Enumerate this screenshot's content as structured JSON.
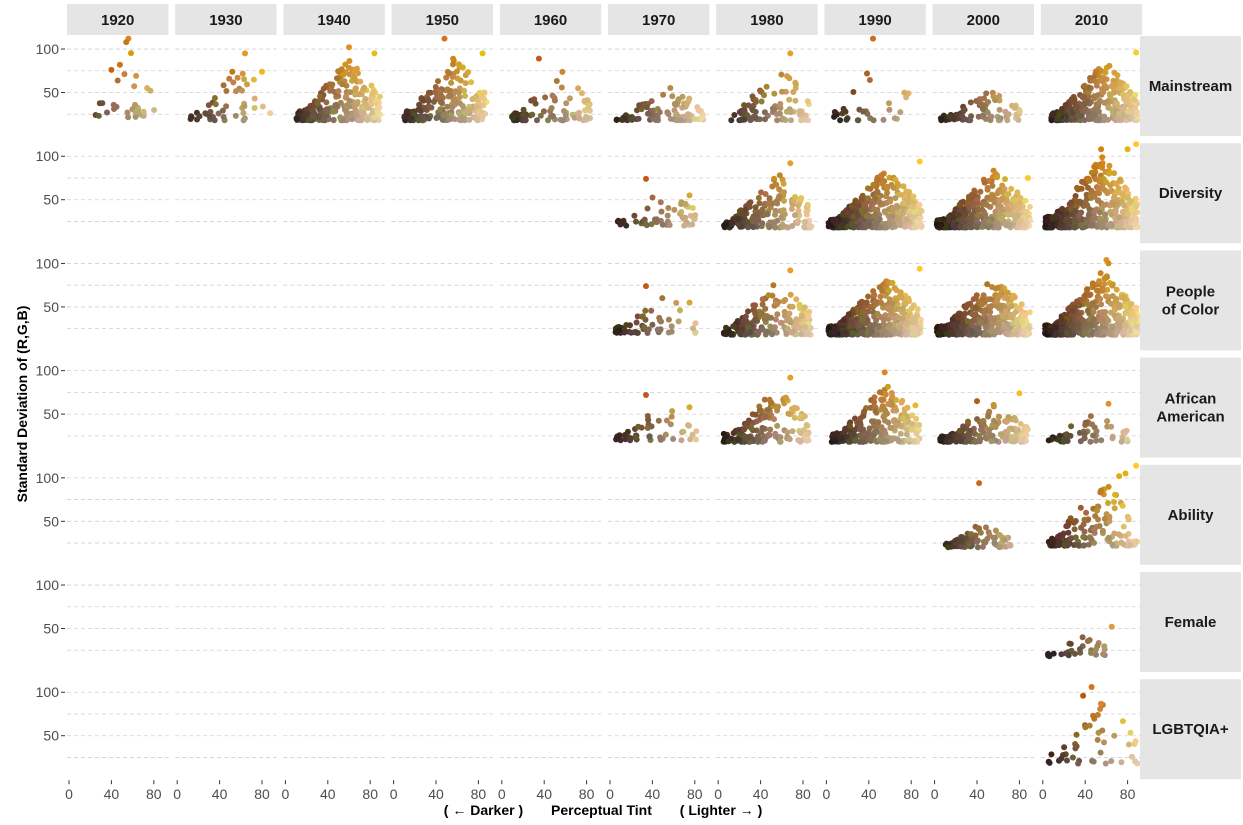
{
  "chart_data": {
    "type": "scatter",
    "facet_columns": [
      "1920",
      "1930",
      "1940",
      "1950",
      "1960",
      "1970",
      "1980",
      "1990",
      "2000",
      "2010"
    ],
    "facet_rows": [
      {
        "label": [
          "Mainstream"
        ]
      },
      {
        "label": [
          "Diversity"
        ]
      },
      {
        "label": [
          "People",
          "of Color"
        ]
      },
      {
        "label": [
          "African",
          "American"
        ]
      },
      {
        "label": [
          "Ability"
        ]
      },
      {
        "label": [
          "Female"
        ]
      },
      {
        "label": [
          "LGBTQIA+"
        ]
      }
    ],
    "xlabel_parts": [
      "( ← Darker )",
      "Perceptual Tint",
      "( Lighter → )"
    ],
    "ylabel": "Standard Deviation of (R,G,B)",
    "x_ticks": [
      "0",
      "40",
      "80"
    ],
    "y_ticks": [
      "50",
      "100"
    ],
    "xlim": [
      0,
      90
    ],
    "ylim": [
      0,
      115
    ],
    "y_gridlines": [
      25,
      50,
      75,
      100
    ],
    "grid": true,
    "strip_fill": "#e5e5e5",
    "grid_color": "#d0d0d0",
    "cell_clusters": [
      [
        {
          "year": "1920",
          "n": 28,
          "xr": [
            18,
            82
          ],
          "yr": [
            20,
            111
          ],
          "outliers": [
            [
              56,
              112
            ],
            [
              54,
              108
            ],
            [
              48,
              82
            ],
            [
              40,
              76
            ]
          ]
        },
        {
          "year": "1930",
          "n": 45,
          "xr": [
            12,
            88
          ],
          "yr": [
            18,
            95
          ],
          "outliers": [
            [
              64,
              95
            ],
            [
              52,
              74
            ],
            [
              80,
              74
            ]
          ]
        },
        {
          "year": "1940",
          "n": 260,
          "xr": [
            10,
            90
          ],
          "yr": [
            18,
            102
          ],
          "outliers": [
            [
              60,
              102
            ],
            [
              84,
              95
            ]
          ]
        },
        {
          "year": "1950",
          "n": 220,
          "xr": [
            10,
            88
          ],
          "yr": [
            18,
            111
          ],
          "outliers": [
            [
              48,
              112
            ],
            [
              84,
              95
            ]
          ]
        },
        {
          "year": "1960",
          "n": 80,
          "xr": [
            8,
            86
          ],
          "yr": [
            18,
            88
          ],
          "outliers": [
            [
              35,
              89
            ]
          ]
        },
        {
          "year": "1970",
          "n": 90,
          "xr": [
            5,
            88
          ],
          "yr": [
            18,
            65
          ],
          "outliers": []
        },
        {
          "year": "1980",
          "n": 85,
          "xr": [
            12,
            86
          ],
          "yr": [
            18,
            95
          ],
          "outliers": [
            [
              68,
              95
            ]
          ]
        },
        {
          "year": "1990",
          "n": 30,
          "xr": [
            5,
            80
          ],
          "yr": [
            18,
            112
          ],
          "outliers": [
            [
              44,
              112
            ]
          ]
        },
        {
          "year": "2000",
          "n": 80,
          "xr": [
            5,
            82
          ],
          "yr": [
            18,
            62
          ],
          "outliers": []
        },
        {
          "year": "2010",
          "n": 320,
          "xr": [
            8,
            90
          ],
          "yr": [
            18,
            98
          ],
          "outliers": [
            [
              88,
              96
            ]
          ]
        }
      ],
      [
        null,
        null,
        null,
        null,
        null,
        {
          "year": "1970",
          "n": 55,
          "xr": [
            5,
            82
          ],
          "yr": [
            20,
            74
          ],
          "outliers": [
            [
              34,
              74
            ],
            [
              75,
              55
            ]
          ]
        },
        {
          "year": "1980",
          "n": 180,
          "xr": [
            5,
            88
          ],
          "yr": [
            18,
            92
          ],
          "outliers": [
            [
              68,
              92
            ]
          ]
        },
        {
          "year": "1990",
          "n": 420,
          "xr": [
            2,
            90
          ],
          "yr": [
            18,
            98
          ],
          "outliers": [
            [
              88,
              94
            ]
          ]
        },
        {
          "year": "2000",
          "n": 420,
          "xr": [
            2,
            90
          ],
          "yr": [
            18,
            98
          ],
          "outliers": [
            [
              88,
              75
            ]
          ]
        },
        {
          "year": "2010",
          "n": 420,
          "xr": [
            2,
            90
          ],
          "yr": [
            18,
            115
          ],
          "outliers": [
            [
              88,
              114
            ],
            [
              80,
              108
            ],
            [
              55,
              108
            ]
          ]
        }
      ],
      [
        null,
        null,
        null,
        null,
        null,
        {
          "year": "1970",
          "n": 55,
          "xr": [
            5,
            82
          ],
          "yr": [
            20,
            74
          ],
          "outliers": [
            [
              34,
              74
            ],
            [
              75,
              55
            ]
          ]
        },
        {
          "year": "1980",
          "n": 180,
          "xr": [
            5,
            88
          ],
          "yr": [
            18,
            92
          ],
          "outliers": [
            [
              68,
              92
            ]
          ]
        },
        {
          "year": "1990",
          "n": 420,
          "xr": [
            2,
            90
          ],
          "yr": [
            18,
            98
          ],
          "outliers": [
            [
              88,
              94
            ]
          ]
        },
        {
          "year": "2000",
          "n": 420,
          "xr": [
            2,
            90
          ],
          "yr": [
            18,
            98
          ],
          "outliers": []
        },
        {
          "year": "2010",
          "n": 420,
          "xr": [
            2,
            90
          ],
          "yr": [
            18,
            105
          ],
          "outliers": [
            [
              60,
              104
            ],
            [
              62,
              100
            ]
          ]
        }
      ],
      [
        null,
        null,
        null,
        null,
        null,
        {
          "year": "1970",
          "n": 55,
          "xr": [
            5,
            82
          ],
          "yr": [
            20,
            72
          ],
          "outliers": [
            [
              34,
              72
            ],
            [
              75,
              58
            ]
          ]
        },
        {
          "year": "1980",
          "n": 150,
          "xr": [
            5,
            86
          ],
          "yr": [
            18,
            92
          ],
          "outliers": [
            [
              68,
              92
            ]
          ]
        },
        {
          "year": "1990",
          "n": 240,
          "xr": [
            5,
            88
          ],
          "yr": [
            18,
            98
          ],
          "outliers": [
            [
              55,
              98
            ],
            [
              84,
              60
            ]
          ]
        },
        {
          "year": "2000",
          "n": 170,
          "xr": [
            5,
            88
          ],
          "yr": [
            18,
            75
          ],
          "outliers": [
            [
              80,
              74
            ],
            [
              40,
              65
            ]
          ]
        },
        {
          "year": "2010",
          "n": 55,
          "xr": [
            5,
            80
          ],
          "yr": [
            18,
            65
          ],
          "outliers": [
            [
              62,
              62
            ]
          ]
        }
      ],
      [
        null,
        null,
        null,
        null,
        null,
        null,
        null,
        null,
        {
          "year": "2000",
          "n": 95,
          "xr": [
            10,
            72
          ],
          "yr": [
            20,
            58
          ],
          "outliers": [
            [
              42,
              94
            ]
          ]
        },
        {
          "year": "2010",
          "n": 130,
          "xr": [
            5,
            90
          ],
          "yr": [
            22,
            115
          ],
          "outliers": [
            [
              88,
              114
            ],
            [
              78,
              105
            ],
            [
              72,
              102
            ]
          ]
        }
      ],
      [
        null,
        null,
        null,
        null,
        null,
        null,
        null,
        null,
        null,
        {
          "year": "2010",
          "n": 30,
          "xr": [
            5,
            60
          ],
          "yr": [
            18,
            52
          ],
          "outliers": [
            [
              65,
              52
            ]
          ]
        }
      ],
      [
        null,
        null,
        null,
        null,
        null,
        null,
        null,
        null,
        null,
        {
          "year": "2010",
          "n": 45,
          "xr": [
            5,
            90
          ],
          "yr": [
            18,
            106
          ],
          "outliers": [
            [
              46,
              106
            ],
            [
              38,
              96
            ]
          ]
        }
      ]
    ]
  }
}
